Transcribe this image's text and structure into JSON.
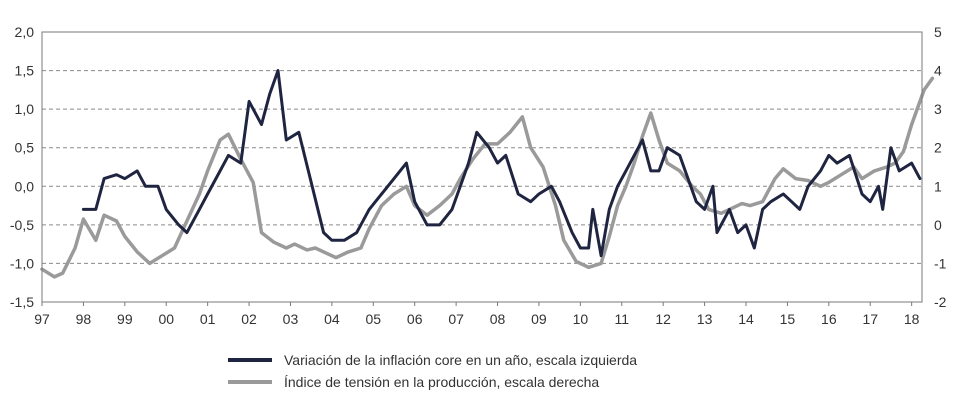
{
  "chart_data": {
    "type": "line",
    "title": "",
    "x_ticks": [
      "97",
      "98",
      "99",
      "00",
      "01",
      "02",
      "03",
      "04",
      "05",
      "06",
      "07",
      "08",
      "09",
      "10",
      "11",
      "12",
      "13",
      "14",
      "15",
      "16",
      "17",
      "18"
    ],
    "left_axis": {
      "ylim": [
        -1.5,
        2.0
      ],
      "ticks": [
        "-1,5",
        "-1,0",
        "-0,5",
        "0,0",
        "0,5",
        "1,0",
        "1,5",
        "2,0"
      ]
    },
    "right_axis": {
      "ylim": [
        -2,
        5
      ],
      "ticks": [
        "-2",
        "-1",
        "0",
        "1",
        "2",
        "3",
        "4",
        "5"
      ]
    },
    "grid": "horizontal dashed",
    "legend_placement": "bottom-center",
    "series": [
      {
        "name": "Variación de la inflación core en un año, escala izquierda",
        "axis": "left",
        "color": "#1f2540",
        "points": [
          [
            1998.0,
            -0.3
          ],
          [
            1998.3,
            -0.3
          ],
          [
            1998.5,
            0.1
          ],
          [
            1998.8,
            0.15
          ],
          [
            1999.0,
            0.1
          ],
          [
            1999.3,
            0.2
          ],
          [
            1999.5,
            0.0
          ],
          [
            1999.8,
            0.0
          ],
          [
            2000.0,
            -0.3
          ],
          [
            2000.3,
            -0.5
          ],
          [
            2000.5,
            -0.6
          ],
          [
            2000.8,
            -0.3
          ],
          [
            2001.0,
            -0.1
          ],
          [
            2001.3,
            0.2
          ],
          [
            2001.5,
            0.4
          ],
          [
            2001.8,
            0.3
          ],
          [
            2002.0,
            1.1
          ],
          [
            2002.3,
            0.8
          ],
          [
            2002.5,
            1.2
          ],
          [
            2002.7,
            1.5
          ],
          [
            2002.9,
            0.6
          ],
          [
            2003.2,
            0.7
          ],
          [
            2003.5,
            0.05
          ],
          [
            2003.8,
            -0.6
          ],
          [
            2004.0,
            -0.7
          ],
          [
            2004.3,
            -0.7
          ],
          [
            2004.6,
            -0.6
          ],
          [
            2004.9,
            -0.3
          ],
          [
            2005.2,
            -0.1
          ],
          [
            2005.5,
            0.1
          ],
          [
            2005.8,
            0.3
          ],
          [
            2006.0,
            -0.2
          ],
          [
            2006.3,
            -0.5
          ],
          [
            2006.6,
            -0.5
          ],
          [
            2006.9,
            -0.3
          ],
          [
            2007.1,
            0.0
          ],
          [
            2007.3,
            0.3
          ],
          [
            2007.5,
            0.7
          ],
          [
            2007.8,
            0.5
          ],
          [
            2008.0,
            0.3
          ],
          [
            2008.2,
            0.4
          ],
          [
            2008.5,
            -0.1
          ],
          [
            2008.8,
            -0.2
          ],
          [
            2009.0,
            -0.1
          ],
          [
            2009.3,
            0.0
          ],
          [
            2009.5,
            -0.2
          ],
          [
            2009.8,
            -0.6
          ],
          [
            2010.0,
            -0.8
          ],
          [
            2010.2,
            -0.8
          ],
          [
            2010.3,
            -0.3
          ],
          [
            2010.5,
            -0.9
          ],
          [
            2010.7,
            -0.3
          ],
          [
            2010.9,
            0.0
          ],
          [
            2011.1,
            0.2
          ],
          [
            2011.3,
            0.4
          ],
          [
            2011.5,
            0.6
          ],
          [
            2011.7,
            0.2
          ],
          [
            2011.9,
            0.2
          ],
          [
            2012.1,
            0.5
          ],
          [
            2012.4,
            0.4
          ],
          [
            2012.6,
            0.1
          ],
          [
            2012.8,
            -0.2
          ],
          [
            2013.0,
            -0.3
          ],
          [
            2013.2,
            0.0
          ],
          [
            2013.3,
            -0.6
          ],
          [
            2013.6,
            -0.3
          ],
          [
            2013.8,
            -0.6
          ],
          [
            2014.0,
            -0.5
          ],
          [
            2014.2,
            -0.8
          ],
          [
            2014.4,
            -0.3
          ],
          [
            2014.6,
            -0.2
          ],
          [
            2014.9,
            -0.1
          ],
          [
            2015.1,
            -0.2
          ],
          [
            2015.3,
            -0.3
          ],
          [
            2015.5,
            0.0
          ],
          [
            2015.8,
            0.2
          ],
          [
            2016.0,
            0.4
          ],
          [
            2016.2,
            0.3
          ],
          [
            2016.5,
            0.4
          ],
          [
            2016.8,
            -0.1
          ],
          [
            2017.0,
            -0.2
          ],
          [
            2017.2,
            0.0
          ],
          [
            2017.3,
            -0.3
          ],
          [
            2017.5,
            0.5
          ],
          [
            2017.7,
            0.2
          ],
          [
            2018.0,
            0.3
          ],
          [
            2018.2,
            0.1
          ]
        ]
      },
      {
        "name": "Índice de tensión en la producción, escala derecha",
        "axis": "right",
        "color": "#9a9a9a",
        "points": [
          [
            1997.0,
            -1.15
          ],
          [
            1997.3,
            -1.35
          ],
          [
            1997.5,
            -1.25
          ],
          [
            1997.8,
            -0.6
          ],
          [
            1998.0,
            0.15
          ],
          [
            1998.3,
            -0.4
          ],
          [
            1998.5,
            0.25
          ],
          [
            1998.8,
            0.1
          ],
          [
            1999.0,
            -0.3
          ],
          [
            1999.3,
            -0.7
          ],
          [
            1999.6,
            -1.0
          ],
          [
            1999.9,
            -0.8
          ],
          [
            2000.2,
            -0.6
          ],
          [
            2000.5,
            0.1
          ],
          [
            2000.8,
            0.8
          ],
          [
            2001.0,
            1.4
          ],
          [
            2001.3,
            2.2
          ],
          [
            2001.5,
            2.35
          ],
          [
            2001.8,
            1.7
          ],
          [
            2002.1,
            1.1
          ],
          [
            2002.3,
            -0.2
          ],
          [
            2002.6,
            -0.45
          ],
          [
            2002.9,
            -0.6
          ],
          [
            2003.1,
            -0.5
          ],
          [
            2003.4,
            -0.65
          ],
          [
            2003.6,
            -0.6
          ],
          [
            2003.9,
            -0.75
          ],
          [
            2004.1,
            -0.85
          ],
          [
            2004.4,
            -0.7
          ],
          [
            2004.7,
            -0.6
          ],
          [
            2004.9,
            -0.1
          ],
          [
            2005.2,
            0.5
          ],
          [
            2005.5,
            0.8
          ],
          [
            2005.8,
            1.0
          ],
          [
            2006.0,
            0.5
          ],
          [
            2006.3,
            0.25
          ],
          [
            2006.6,
            0.5
          ],
          [
            2006.9,
            0.8
          ],
          [
            2007.1,
            1.2
          ],
          [
            2007.4,
            1.7
          ],
          [
            2007.7,
            2.1
          ],
          [
            2008.0,
            2.1
          ],
          [
            2008.3,
            2.4
          ],
          [
            2008.6,
            2.8
          ],
          [
            2008.8,
            2.0
          ],
          [
            2009.1,
            1.5
          ],
          [
            2009.4,
            0.5
          ],
          [
            2009.6,
            -0.4
          ],
          [
            2009.9,
            -0.95
          ],
          [
            2010.2,
            -1.1
          ],
          [
            2010.5,
            -1.0
          ],
          [
            2010.7,
            -0.3
          ],
          [
            2010.9,
            0.5
          ],
          [
            2011.1,
            1.0
          ],
          [
            2011.3,
            1.6
          ],
          [
            2011.5,
            2.3
          ],
          [
            2011.7,
            2.9
          ],
          [
            2011.9,
            2.2
          ],
          [
            2012.1,
            1.6
          ],
          [
            2012.4,
            1.4
          ],
          [
            2012.7,
            1.0
          ],
          [
            2012.9,
            0.8
          ],
          [
            2013.1,
            0.4
          ],
          [
            2013.4,
            0.3
          ],
          [
            2013.6,
            0.4
          ],
          [
            2013.9,
            0.55
          ],
          [
            2014.1,
            0.5
          ],
          [
            2014.4,
            0.6
          ],
          [
            2014.7,
            1.2
          ],
          [
            2014.9,
            1.45
          ],
          [
            2015.2,
            1.2
          ],
          [
            2015.5,
            1.15
          ],
          [
            2015.8,
            1.0
          ],
          [
            2016.0,
            1.1
          ],
          [
            2016.3,
            1.3
          ],
          [
            2016.6,
            1.5
          ],
          [
            2016.8,
            1.2
          ],
          [
            2017.1,
            1.4
          ],
          [
            2017.4,
            1.5
          ],
          [
            2017.6,
            1.6
          ],
          [
            2017.8,
            1.9
          ],
          [
            2018.0,
            2.6
          ],
          [
            2018.3,
            3.5
          ],
          [
            2018.5,
            3.8
          ]
        ]
      }
    ]
  }
}
